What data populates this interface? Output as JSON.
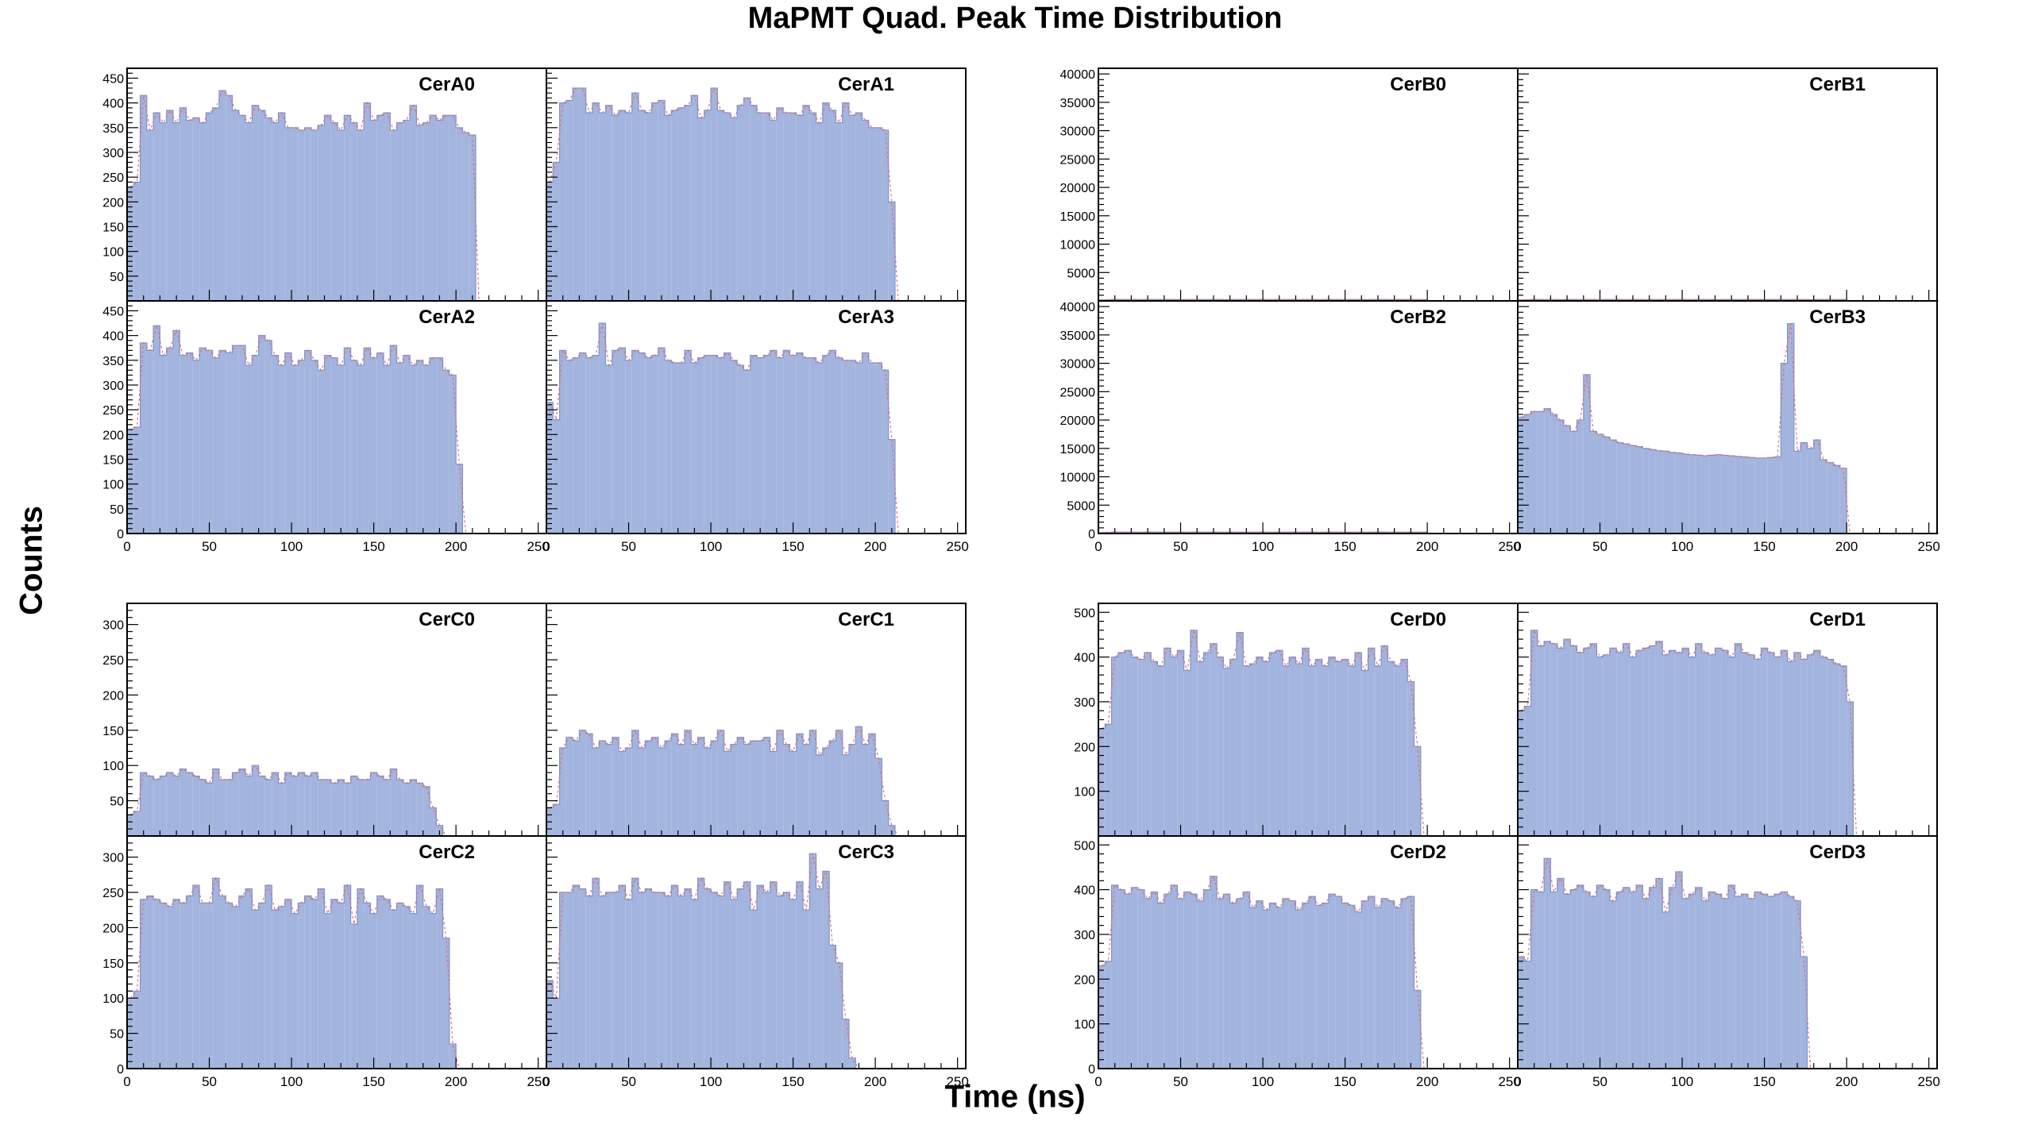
{
  "title": "MaPMT Quad. Peak Time Distribution",
  "xlabel": "Time (ns)",
  "ylabel": "Counts",
  "colors": {
    "fill": "#a3b5de",
    "edge": "#7f93c8",
    "fit": "#e0707a",
    "frame": "#000000"
  },
  "chart_data": [
    {
      "type": "bar",
      "name": "CerA0",
      "title": "CerA0",
      "xlim": [
        0,
        255
      ],
      "ylim": [
        0,
        470
      ],
      "yticks": [
        50,
        100,
        150,
        200,
        250,
        300,
        350,
        400,
        450
      ],
      "xticks": [
        0,
        50,
        100,
        150,
        200,
        250
      ],
      "values": [
        230,
        240,
        415,
        345,
        380,
        360,
        385,
        360,
        390,
        365,
        370,
        360,
        380,
        390,
        425,
        415,
        385,
        375,
        360,
        395,
        385,
        370,
        360,
        380,
        350,
        350,
        345,
        350,
        345,
        355,
        375,
        360,
        345,
        375,
        360,
        345,
        400,
        365,
        375,
        380,
        345,
        360,
        365,
        395,
        355,
        360,
        375,
        365,
        375,
        375,
        350,
        340,
        335,
        0,
        0,
        0,
        0,
        0,
        0,
        0,
        0,
        0,
        0,
        0
      ]
    },
    {
      "type": "bar",
      "name": "CerA1",
      "title": "CerA1",
      "xlim": [
        0,
        255
      ],
      "ylim": [
        0,
        470
      ],
      "yticks": [
        50,
        100,
        150,
        200,
        250,
        300,
        350,
        400,
        450
      ],
      "xticks": [
        0,
        50,
        100,
        150,
        200,
        250
      ],
      "values": [
        240,
        280,
        400,
        405,
        430,
        430,
        380,
        400,
        380,
        395,
        375,
        385,
        380,
        420,
        385,
        380,
        400,
        405,
        375,
        385,
        390,
        395,
        415,
        370,
        385,
        430,
        385,
        380,
        370,
        395,
        410,
        395,
        380,
        380,
        365,
        390,
        380,
        380,
        375,
        395,
        380,
        360,
        400,
        385,
        360,
        400,
        375,
        380,
        365,
        350,
        350,
        345,
        200,
        0,
        0,
        0,
        0,
        0,
        0,
        0,
        0,
        0,
        0,
        0
      ]
    },
    {
      "type": "bar",
      "name": "CerA2",
      "title": "CerA2",
      "xlim": [
        0,
        255
      ],
      "ylim": [
        0,
        470
      ],
      "yticks": [
        50,
        100,
        150,
        200,
        250,
        300,
        350,
        400,
        450
      ],
      "xticks": [
        0,
        50,
        100,
        150,
        200,
        250
      ],
      "values": [
        210,
        215,
        385,
        370,
        420,
        360,
        375,
        410,
        360,
        365,
        350,
        375,
        370,
        355,
        370,
        365,
        380,
        380,
        340,
        360,
        400,
        390,
        360,
        340,
        365,
        340,
        350,
        370,
        350,
        330,
        360,
        355,
        340,
        375,
        350,
        340,
        375,
        355,
        365,
        340,
        380,
        345,
        360,
        340,
        350,
        340,
        355,
        355,
        330,
        320,
        140,
        0,
        0,
        0,
        0,
        0,
        0,
        0,
        0,
        0,
        0,
        0,
        0,
        0
      ]
    },
    {
      "type": "bar",
      "name": "CerA3",
      "title": "CerA3",
      "xlim": [
        0,
        255
      ],
      "ylim": [
        0,
        470
      ],
      "yticks": [
        50,
        100,
        150,
        200,
        250,
        300,
        350,
        400,
        450
      ],
      "xticks": [
        0,
        50,
        100,
        150,
        200,
        250
      ],
      "values": [
        265,
        230,
        370,
        350,
        355,
        365,
        355,
        360,
        425,
        340,
        370,
        375,
        350,
        370,
        365,
        355,
        360,
        375,
        350,
        345,
        345,
        370,
        345,
        355,
        360,
        360,
        355,
        365,
        350,
        340,
        330,
        360,
        355,
        360,
        370,
        355,
        370,
        360,
        365,
        355,
        355,
        345,
        360,
        370,
        355,
        350,
        350,
        345,
        365,
        345,
        345,
        330,
        190,
        0,
        0,
        0,
        0,
        0,
        0,
        0,
        0,
        0,
        0,
        0
      ]
    },
    {
      "type": "bar",
      "name": "CerB0",
      "title": "CerB0",
      "xlim": [
        0,
        255
      ],
      "ylim": [
        0,
        41000
      ],
      "yticks": [
        5000,
        10000,
        15000,
        20000,
        25000,
        30000,
        35000,
        40000
      ],
      "xticks": [
        0,
        50,
        100,
        150,
        200,
        250
      ],
      "values": [
        180,
        220,
        260,
        240,
        250,
        240,
        230,
        250,
        260,
        230,
        240,
        250,
        230,
        240,
        250,
        240,
        230,
        250,
        240,
        230,
        250,
        240,
        230,
        240,
        250,
        240,
        230,
        240,
        250,
        240,
        230,
        250,
        240,
        230,
        240,
        250,
        240,
        230,
        250,
        240,
        230,
        240,
        250,
        240,
        230,
        240,
        250,
        240,
        230,
        240,
        0,
        0,
        0,
        0,
        0,
        0,
        0,
        0,
        0,
        0,
        0,
        0,
        0,
        0
      ]
    },
    {
      "type": "bar",
      "name": "CerB1",
      "title": "CerB1",
      "xlim": [
        0,
        255
      ],
      "ylim": [
        0,
        41000
      ],
      "yticks": [
        5000,
        10000,
        15000,
        20000,
        25000,
        30000,
        35000,
        40000
      ],
      "xticks": [
        0,
        50,
        100,
        150,
        200,
        250
      ],
      "values": [
        180,
        220,
        260,
        240,
        250,
        240,
        230,
        250,
        260,
        230,
        240,
        250,
        230,
        240,
        250,
        240,
        230,
        250,
        240,
        230,
        250,
        240,
        230,
        240,
        250,
        240,
        230,
        240,
        250,
        240,
        230,
        250,
        240,
        230,
        240,
        250,
        240,
        230,
        250,
        240,
        230,
        240,
        250,
        240,
        230,
        240,
        250,
        240,
        230,
        240,
        0,
        0,
        0,
        0,
        0,
        0,
        0,
        0,
        0,
        0,
        0,
        0,
        0,
        0
      ]
    },
    {
      "type": "bar",
      "name": "CerB2",
      "title": "CerB2",
      "xlim": [
        0,
        255
      ],
      "ylim": [
        0,
        41000
      ],
      "yticks": [
        5000,
        10000,
        15000,
        20000,
        25000,
        30000,
        35000,
        40000
      ],
      "xticks": [
        0,
        50,
        100,
        150,
        200,
        250
      ],
      "values": [
        180,
        220,
        260,
        240,
        250,
        240,
        230,
        250,
        260,
        230,
        240,
        250,
        230,
        240,
        250,
        240,
        230,
        250,
        240,
        230,
        250,
        240,
        230,
        240,
        250,
        240,
        230,
        240,
        250,
        240,
        230,
        250,
        240,
        230,
        240,
        250,
        240,
        230,
        250,
        240,
        230,
        240,
        250,
        240,
        230,
        240,
        250,
        240,
        230,
        240,
        0,
        0,
        0,
        0,
        0,
        0,
        0,
        0,
        0,
        0,
        0,
        0,
        0,
        0
      ]
    },
    {
      "type": "bar",
      "name": "CerB3",
      "title": "CerB3",
      "xlim": [
        0,
        255
      ],
      "ylim": [
        0,
        41000
      ],
      "yticks": [
        5000,
        10000,
        15000,
        20000,
        25000,
        30000,
        35000,
        40000
      ],
      "xticks": [
        0,
        50,
        100,
        150,
        200,
        250
      ],
      "values": [
        20500,
        21000,
        21500,
        21500,
        22000,
        21000,
        20000,
        19000,
        18000,
        20000,
        28000,
        18000,
        17500,
        17000,
        16500,
        16000,
        15800,
        15500,
        15300,
        15000,
        14800,
        14600,
        14500,
        14300,
        14200,
        14000,
        13900,
        13800,
        13700,
        13800,
        13900,
        13800,
        13700,
        13600,
        13500,
        13400,
        13300,
        13300,
        13400,
        13500,
        30000,
        37000,
        14500,
        16000,
        15000,
        16500,
        13000,
        12500,
        12000,
        11500,
        0,
        0,
        0,
        0,
        0,
        0,
        0,
        0,
        0,
        0,
        0,
        0,
        0,
        0
      ]
    },
    {
      "type": "bar",
      "name": "CerC0",
      "title": "CerC0",
      "xlim": [
        0,
        255
      ],
      "ylim": [
        0,
        330
      ],
      "yticks": [
        50,
        100,
        150,
        200,
        250,
        300
      ],
      "xticks": [
        0,
        50,
        100,
        150,
        200,
        250
      ],
      "values": [
        30,
        35,
        90,
        85,
        80,
        85,
        90,
        85,
        95,
        90,
        85,
        80,
        75,
        95,
        80,
        80,
        90,
        95,
        85,
        100,
        85,
        80,
        90,
        75,
        90,
        85,
        90,
        85,
        90,
        80,
        80,
        75,
        80,
        75,
        85,
        80,
        80,
        90,
        85,
        80,
        95,
        80,
        75,
        80,
        75,
        70,
        40,
        15,
        0,
        0,
        0,
        0,
        0,
        0,
        0,
        0,
        0,
        0,
        0,
        0,
        0,
        0,
        0,
        0
      ]
    },
    {
      "type": "bar",
      "name": "CerC1",
      "title": "CerC1",
      "xlim": [
        0,
        255
      ],
      "ylim": [
        0,
        330
      ],
      "yticks": [
        50,
        100,
        150,
        200,
        250,
        300
      ],
      "xticks": [
        0,
        50,
        100,
        150,
        200,
        250
      ],
      "values": [
        40,
        45,
        125,
        140,
        135,
        150,
        145,
        125,
        135,
        130,
        140,
        120,
        125,
        150,
        125,
        135,
        140,
        125,
        135,
        145,
        130,
        150,
        130,
        140,
        125,
        135,
        150,
        120,
        130,
        140,
        130,
        135,
        135,
        140,
        120,
        150,
        130,
        120,
        145,
        130,
        150,
        115,
        125,
        135,
        150,
        115,
        130,
        155,
        130,
        145,
        110,
        50,
        15,
        0,
        0,
        0,
        0,
        0,
        0,
        0,
        0,
        0,
        0,
        0
      ]
    },
    {
      "type": "bar",
      "name": "CerC2",
      "title": "CerC2",
      "xlim": [
        0,
        255
      ],
      "ylim": [
        0,
        330
      ],
      "yticks": [
        50,
        100,
        150,
        200,
        250,
        300
      ],
      "xticks": [
        0,
        50,
        100,
        150,
        200,
        250
      ],
      "values": [
        100,
        110,
        240,
        245,
        240,
        235,
        230,
        240,
        235,
        245,
        260,
        235,
        235,
        270,
        245,
        235,
        230,
        245,
        255,
        225,
        235,
        260,
        225,
        230,
        240,
        220,
        235,
        245,
        240,
        255,
        220,
        240,
        235,
        260,
        205,
        255,
        235,
        220,
        245,
        240,
        225,
        235,
        230,
        220,
        260,
        230,
        220,
        255,
        185,
        35,
        0,
        0,
        0,
        0,
        0,
        0,
        0,
        0,
        0,
        0,
        0,
        0,
        0,
        0
      ]
    },
    {
      "type": "bar",
      "name": "CerC3",
      "title": "CerC3",
      "xlim": [
        0,
        255
      ],
      "ylim": [
        0,
        330
      ],
      "yticks": [
        50,
        100,
        150,
        200,
        250,
        300
      ],
      "xticks": [
        0,
        50,
        100,
        150,
        200,
        250
      ],
      "values": [
        125,
        100,
        250,
        250,
        260,
        255,
        245,
        270,
        245,
        250,
        250,
        260,
        240,
        270,
        250,
        255,
        250,
        250,
        245,
        260,
        245,
        255,
        240,
        270,
        255,
        250,
        245,
        265,
        240,
        255,
        265,
        225,
        260,
        250,
        265,
        245,
        250,
        240,
        265,
        225,
        305,
        255,
        280,
        175,
        150,
        70,
        15,
        0,
        0,
        0,
        0,
        0,
        0,
        0,
        0,
        0,
        0,
        0,
        0,
        0
      ]
    },
    {
      "type": "bar",
      "name": "CerD0",
      "title": "CerD0",
      "xlim": [
        0,
        255
      ],
      "ylim": [
        0,
        520
      ],
      "yticks": [
        100,
        200,
        300,
        400,
        500
      ],
      "xticks": [
        0,
        50,
        100,
        150,
        200,
        250
      ],
      "values": [
        240,
        250,
        400,
        410,
        415,
        400,
        395,
        410,
        390,
        380,
        420,
        400,
        415,
        370,
        460,
        390,
        410,
        430,
        400,
        375,
        395,
        455,
        380,
        385,
        400,
        390,
        410,
        415,
        380,
        400,
        385,
        420,
        380,
        395,
        380,
        400,
        390,
        395,
        380,
        410,
        370,
        420,
        380,
        425,
        390,
        380,
        395,
        345,
        200,
        0,
        0,
        0,
        0,
        0,
        0,
        0,
        0,
        0,
        0,
        0
      ]
    },
    {
      "type": "bar",
      "name": "CerD1",
      "title": "CerD1",
      "xlim": [
        0,
        255
      ],
      "ylim": [
        0,
        520
      ],
      "yticks": [
        100,
        200,
        300,
        400,
        500
      ],
      "xticks": [
        0,
        50,
        100,
        150,
        200,
        250
      ],
      "values": [
        280,
        290,
        460,
        425,
        435,
        430,
        420,
        440,
        425,
        410,
        420,
        430,
        400,
        405,
        420,
        410,
        430,
        400,
        415,
        420,
        425,
        435,
        405,
        415,
        410,
        420,
        400,
        430,
        410,
        405,
        420,
        415,
        400,
        430,
        410,
        405,
        395,
        420,
        410,
        400,
        415,
        390,
        410,
        395,
        405,
        415,
        400,
        395,
        385,
        380,
        300,
        0,
        0,
        0,
        0,
        0,
        0,
        0,
        0,
        0,
        0,
        0
      ]
    },
    {
      "type": "bar",
      "name": "CerD2",
      "title": "CerD2",
      "xlim": [
        0,
        255
      ],
      "ylim": [
        0,
        520
      ],
      "yticks": [
        100,
        200,
        300,
        400,
        500
      ],
      "xticks": [
        0,
        50,
        100,
        150,
        200,
        250
      ],
      "values": [
        230,
        240,
        410,
        400,
        390,
        405,
        400,
        380,
        395,
        370,
        390,
        410,
        380,
        395,
        390,
        375,
        400,
        430,
        380,
        390,
        370,
        380,
        395,
        360,
        375,
        355,
        370,
        360,
        380,
        375,
        355,
        370,
        385,
        365,
        370,
        390,
        385,
        370,
        365,
        350,
        375,
        385,
        360,
        380,
        375,
        360,
        380,
        385,
        175,
        0,
        0,
        0,
        0,
        0,
        0,
        0,
        0,
        0,
        0,
        0,
        0,
        0,
        0,
        0
      ]
    },
    {
      "type": "bar",
      "name": "CerD3",
      "title": "CerD3",
      "xlim": [
        0,
        255
      ],
      "ylim": [
        0,
        520
      ],
      "yticks": [
        100,
        200,
        300,
        400,
        500
      ],
      "xticks": [
        0,
        50,
        100,
        150,
        200,
        250
      ],
      "values": [
        250,
        240,
        400,
        395,
        470,
        395,
        425,
        390,
        400,
        410,
        395,
        385,
        410,
        400,
        375,
        395,
        405,
        395,
        410,
        380,
        405,
        425,
        350,
        405,
        440,
        380,
        390,
        405,
        375,
        395,
        390,
        380,
        410,
        385,
        390,
        380,
        395,
        390,
        385,
        390,
        395,
        385,
        375,
        250,
        0,
        0,
        0,
        0,
        0,
        0,
        0,
        0,
        0,
        0,
        0,
        0,
        0,
        0,
        0
      ]
    }
  ]
}
